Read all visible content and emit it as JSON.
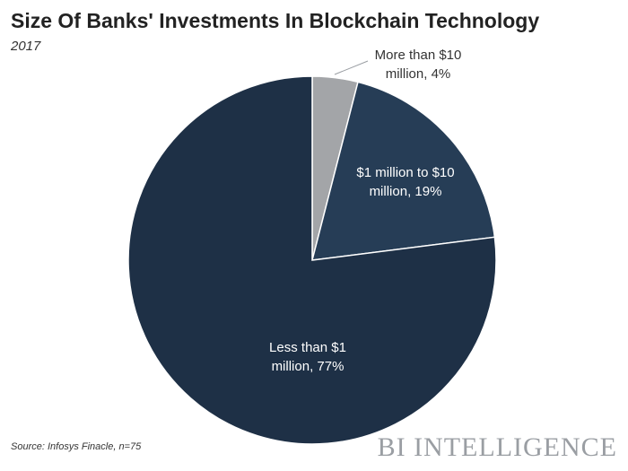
{
  "title": "Size Of Banks' Investments In Blockchain Technology",
  "subtitle": "2017",
  "source": "Source: Infosys Finacle, n=75",
  "brand": "BI INTELLIGENCE",
  "colors": {
    "slice_large": "#1e3046",
    "slice_mid": "#263d56",
    "slice_small": "#a3a5a8",
    "slice_border": "#ffffff"
  },
  "chart_data": {
    "type": "pie",
    "title": "Size Of Banks' Investments In Blockchain Technology",
    "subtitle": "2017",
    "categories": [
      "More than $10 million",
      "$1 million to $10 million",
      "Less than $1 million"
    ],
    "values": [
      4,
      19,
      77
    ],
    "unit": "%",
    "labels": [
      [
        "More than $10",
        "million, 4%"
      ],
      [
        "$1 million to $10",
        "million, 19%"
      ],
      [
        "Less than $1",
        "million, 77%"
      ]
    ],
    "colors": [
      "#a3a5a8",
      "#263d56",
      "#1e3046"
    ],
    "label_colors": [
      "#333333",
      "#ffffff",
      "#ffffff"
    ]
  }
}
